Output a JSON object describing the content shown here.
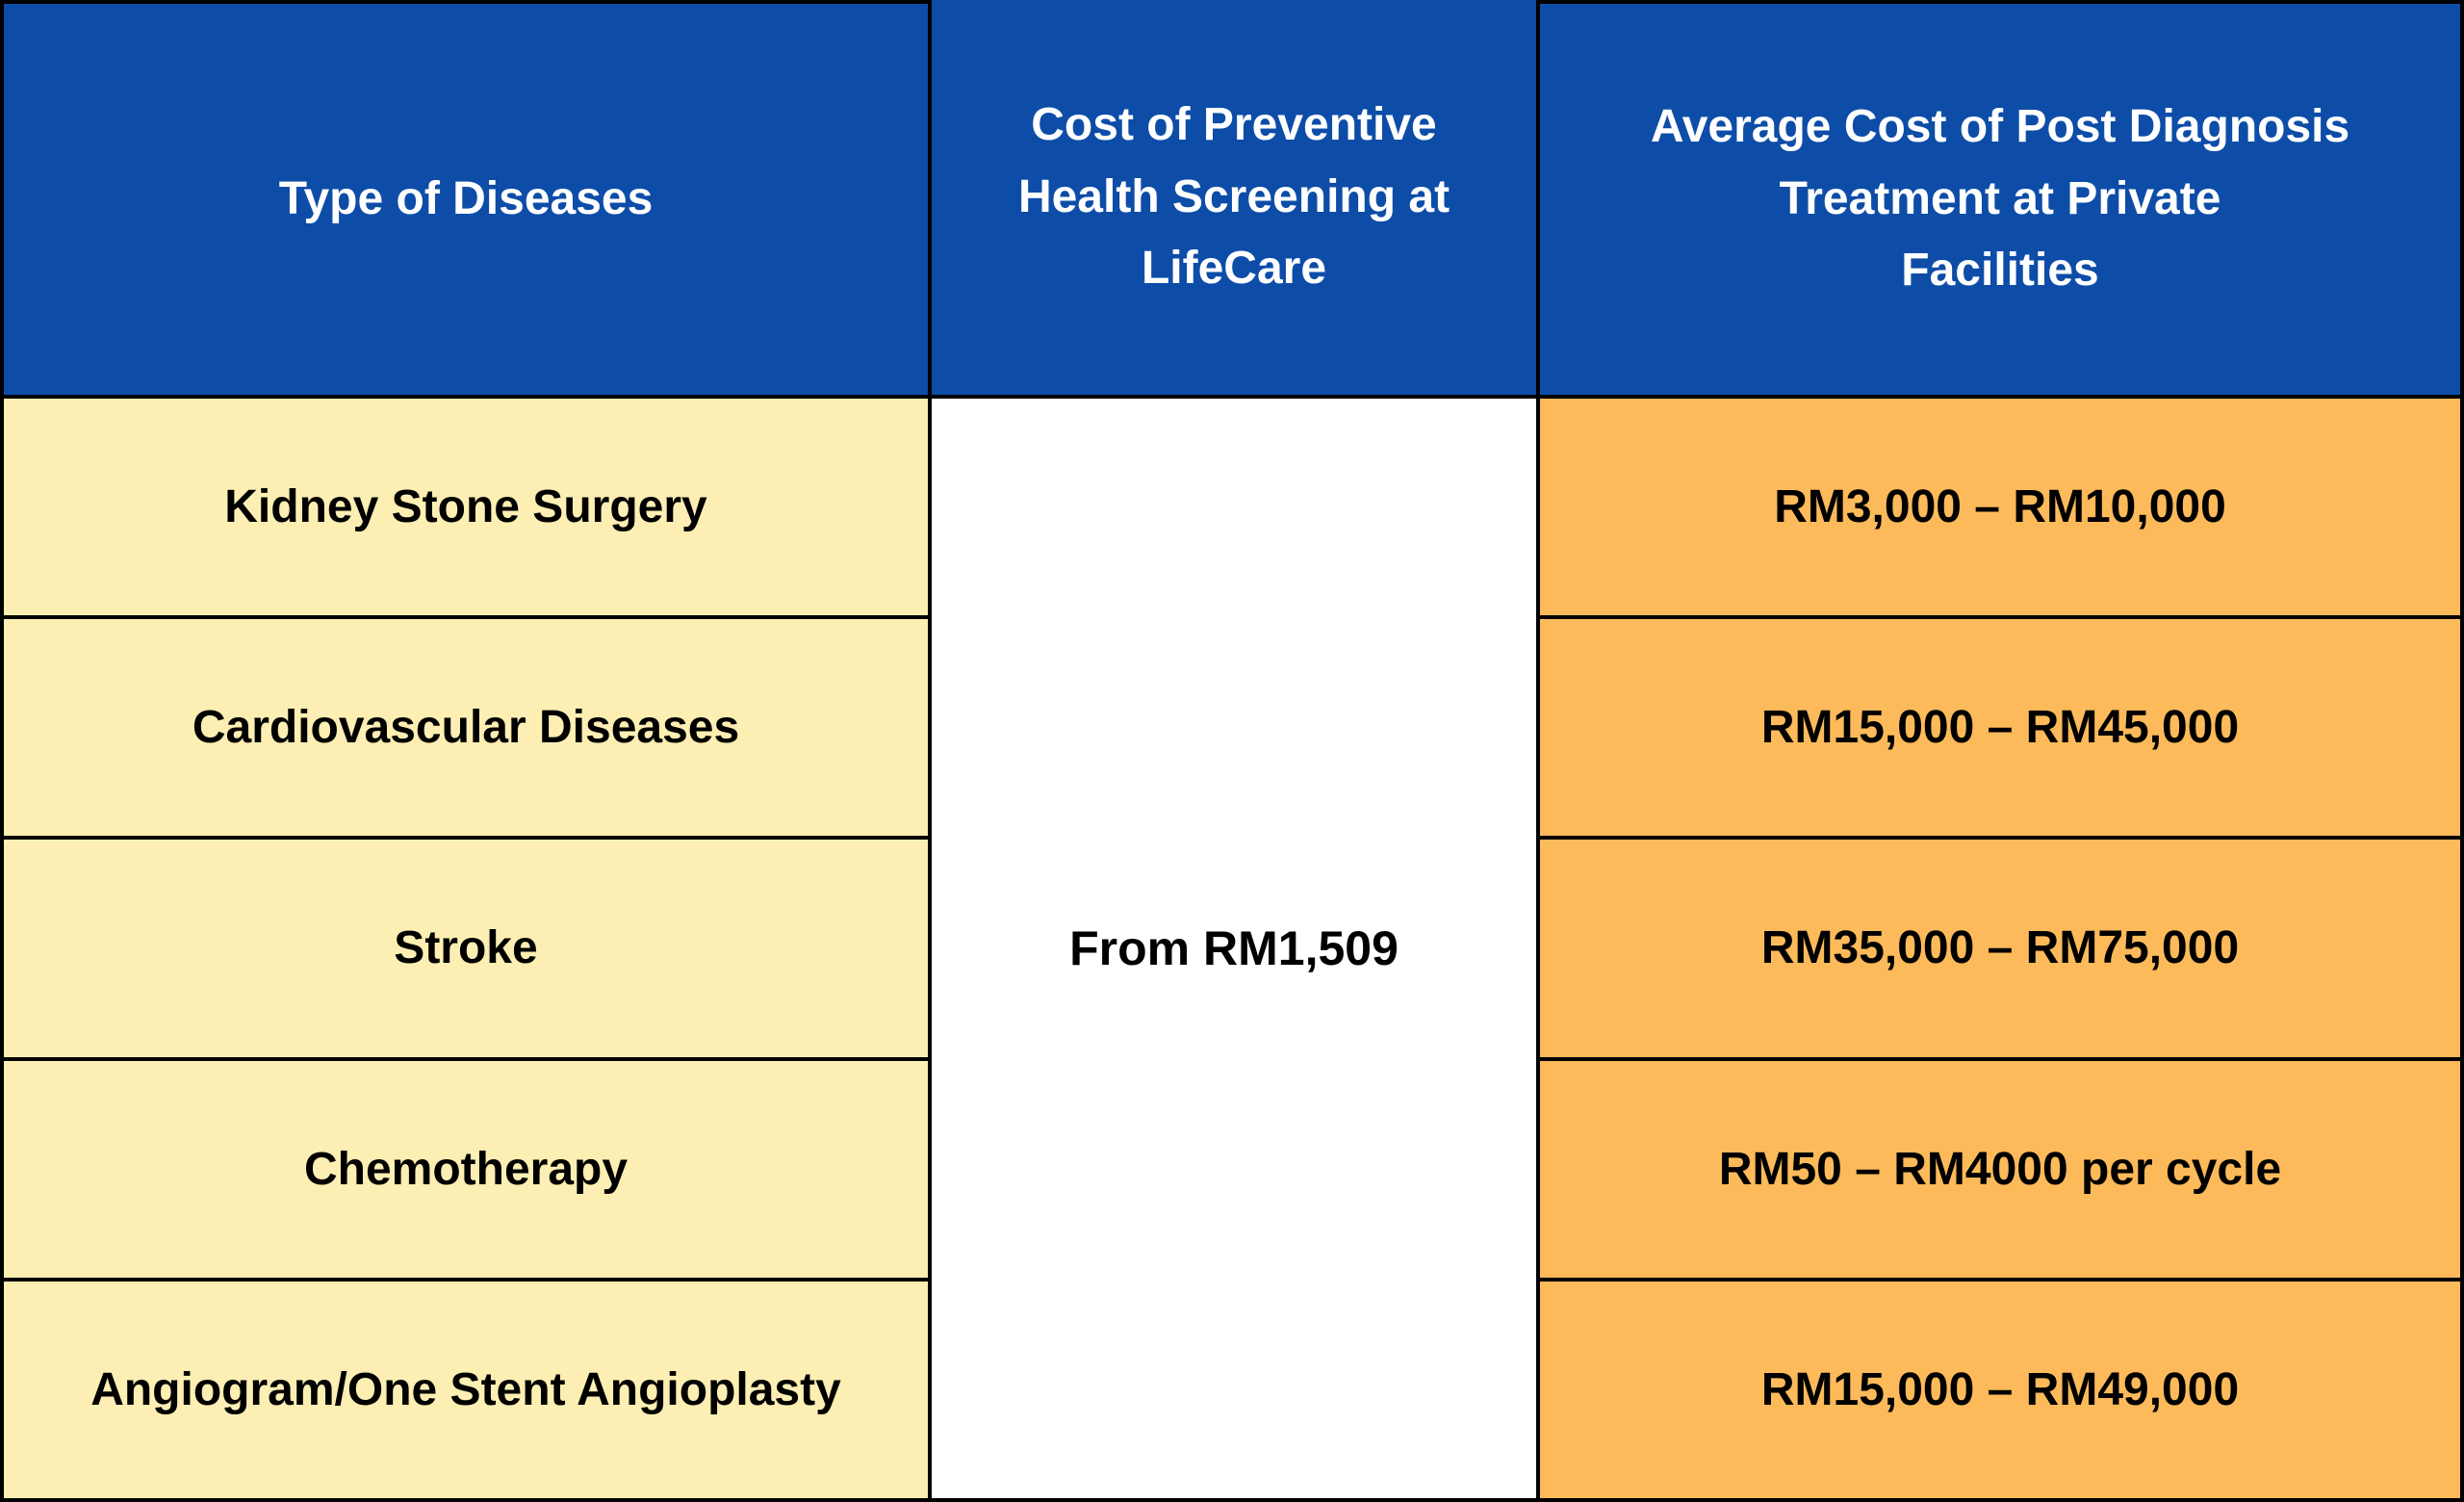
{
  "theme": {
    "blue": "#0D4DA8",
    "yellow": "#FDEFB3",
    "orange": "#FDBA5A",
    "white": "#FFFFFF",
    "border": "#000000",
    "header_text": "#FFFFFF",
    "body_text": "#000000"
  },
  "chart_data": {
    "type": "table",
    "columns": [
      "Type of Diseases",
      "Cost of Preventive Health Screening at LifeCare",
      "Average Cost of Post Diagnosis Treatment at Private Facilities"
    ],
    "header_lines": {
      "col1": [
        "Type of Diseases"
      ],
      "col2": [
        "Cost of Preventive",
        "Health Screening at",
        "LifeCare"
      ],
      "col3": [
        "Average Cost of Post Diagnosis",
        "Treatment at Private",
        "Facilities"
      ]
    },
    "merged_screening_cost": "From RM1,509",
    "rows": [
      {
        "disease": "Kidney Stone Surgery",
        "treatment_cost": "RM3,000 – RM10,000"
      },
      {
        "disease": "Cardiovascular Diseases",
        "treatment_cost": "RM15,000 – RM45,000"
      },
      {
        "disease": "Stroke",
        "treatment_cost": "RM35,000 – RM75,000"
      },
      {
        "disease": "Chemotherapy",
        "treatment_cost": "RM50 – RM4000 per cycle"
      },
      {
        "disease": "Angiogram/One Stent Angioplasty",
        "treatment_cost": "RM15,000 – RM49,000"
      }
    ]
  }
}
